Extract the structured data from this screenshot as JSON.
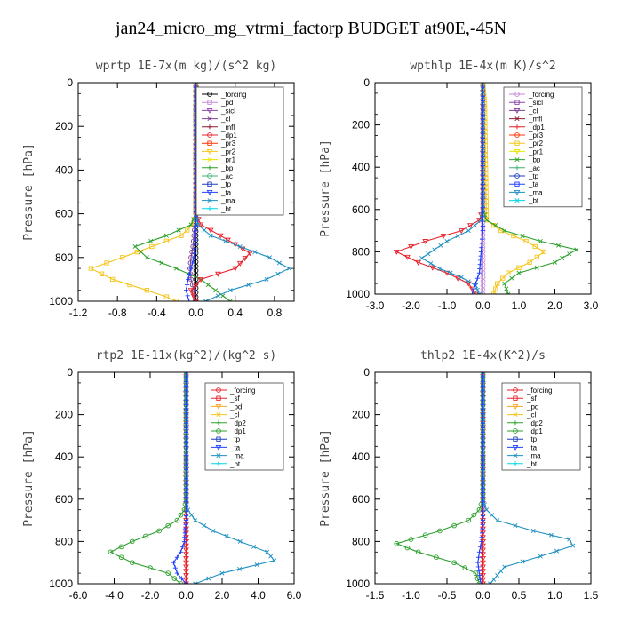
{
  "figure": {
    "title": "jan24_micro_mg_vtrmi_factorp  BUDGET at90E,-45N"
  },
  "colors": {
    "forcing": "#e8222b",
    "sf": "#e8222b",
    "pd": "#f5a623",
    "sicl": "#8e44ad",
    "cl": "#7b3f8f",
    "mfl": "#8b1a2c",
    "dp1": "#e8222b",
    "dp2": "#2ca02c",
    "pr3": "#ff3300",
    "pr2": "#f5c518",
    "pr1": "#e6e600",
    "bp": "#2ca02c",
    "ac": "#3cb371",
    "tp": "#1f3fbf",
    "ta": "#2040ff",
    "ma": "#1e90c0",
    "bt": "#00d5e5",
    "wp_forcing": "#000000",
    "wp_pd": "#c58ad6"
  },
  "chart_data": [
    {
      "type": "line",
      "title": "wprtp   1E-7x(m kg)/(s^2 kg)",
      "ylabel": "Pressure [hPa]",
      "xlim": [
        -1.2,
        1.0
      ],
      "ylim": [
        1000,
        0
      ],
      "xticks": [
        "-1.2",
        "-0.8",
        "-0.4",
        "0.0",
        "0.4",
        "0.8"
      ],
      "xtick_values": [
        -1.2,
        -0.8,
        -0.4,
        0.0,
        0.4,
        0.8
      ],
      "yticks": [
        "0",
        "200",
        "400",
        "600",
        "800",
        "1000"
      ],
      "legend_position": "top-right",
      "legend": [
        "_forcing",
        "_pd",
        "_sicl",
        "_cl",
        "_mfl",
        "_dp1",
        "_pr3",
        "_pr2",
        "_pr1",
        "_bp",
        "_ac",
        "_tp",
        "_ta",
        "_ma",
        "_bt"
      ],
      "legend_colors": [
        "wp_forcing",
        "wp_pd",
        "sicl",
        "cl",
        "mfl",
        "dp1",
        "pr3",
        "pr2",
        "pr1",
        "bp",
        "ac",
        "tp",
        "ta",
        "ma",
        "bt"
      ],
      "series": [
        {
          "name": "_forcing",
          "color": "wp_forcing",
          "marker": "circle",
          "x": [
            0,
            0,
            0,
            0,
            0,
            0,
            0,
            0,
            0,
            0,
            0
          ],
          "y": [
            0,
            100,
            200,
            300,
            400,
            500,
            600,
            700,
            800,
            900,
            1000
          ]
        },
        {
          "name": "_cl",
          "color": "cl",
          "marker": "circle",
          "x": [
            0,
            0,
            0,
            0,
            -0.01,
            -0.02,
            -0.03,
            -0.05,
            -0.06,
            -0.05,
            -0.02,
            -0.01
          ],
          "y": [
            0,
            200,
            400,
            600,
            650,
            700,
            750,
            800,
            850,
            900,
            950,
            1000
          ]
        },
        {
          "name": "_pr2",
          "color": "pr2",
          "marker": "square",
          "x": [
            0,
            0,
            -0.03,
            -0.15,
            -0.45,
            -0.75,
            -1.07,
            -0.85,
            -0.5,
            -0.3,
            -0.2
          ],
          "y": [
            0,
            600,
            650,
            700,
            750,
            800,
            850,
            900,
            950,
            980,
            1000
          ]
        },
        {
          "name": "_bp",
          "color": "bp",
          "marker": "x",
          "x": [
            0,
            0,
            -0.05,
            -0.3,
            -0.62,
            -0.5,
            -0.2,
            0.05,
            0.2,
            0.35
          ],
          "y": [
            0,
            600,
            650,
            700,
            750,
            800,
            850,
            900,
            950,
            1000
          ]
        },
        {
          "name": "_dp1",
          "color": "dp1",
          "marker": "triangle",
          "x": [
            0,
            0,
            0.05,
            0.25,
            0.55,
            0.4,
            0.05,
            -0.05,
            0.0
          ],
          "y": [
            0,
            600,
            650,
            700,
            780,
            850,
            900,
            950,
            1000
          ]
        },
        {
          "name": "_ma",
          "color": "ma",
          "marker": "x",
          "x": [
            0,
            0,
            0.02,
            0.15,
            0.45,
            0.75,
            0.95,
            0.72,
            0.35,
            0.1
          ],
          "y": [
            0,
            600,
            650,
            700,
            750,
            800,
            850,
            900,
            950,
            1000
          ]
        },
        {
          "name": "_ta",
          "color": "ta",
          "marker": "plus",
          "x": [
            0,
            0,
            -0.02,
            -0.05,
            -0.08,
            -0.1,
            -0.07
          ],
          "y": [
            0,
            700,
            800,
            850,
            900,
            950,
            1000
          ]
        }
      ]
    },
    {
      "type": "line",
      "title": "wpthlp   1E-4x(m K)/s^2",
      "ylabel": "Pressure [hPa]",
      "xlim": [
        -3.0,
        3.0
      ],
      "ylim": [
        1000,
        0
      ],
      "xticks": [
        "-3.0",
        "-2.0",
        "-1.0",
        "0.0",
        "1.0",
        "2.0",
        "3.0"
      ],
      "xtick_values": [
        -3,
        -2,
        -1,
        0,
        1,
        2,
        3
      ],
      "yticks": [
        "0",
        "200",
        "400",
        "600",
        "800",
        "1000"
      ],
      "legend_position": "top-right",
      "legend": [
        "_forcing",
        "_sicl",
        "_cl",
        "_mfl",
        "_dp1",
        "_pr3",
        "_pr2",
        "_pr1",
        "_bp",
        "_ac",
        "_tp",
        "_ta",
        "_ma",
        "_bt"
      ],
      "legend_colors": [
        "wp_pd",
        "sicl",
        "cl",
        "mfl",
        "dp1",
        "pr3",
        "pr2",
        "pr1",
        "bp",
        "ac",
        "tp",
        "ta",
        "ma",
        "bt"
      ],
      "series": [
        {
          "name": "_forcing",
          "color": "wp_pd",
          "marker": "circle",
          "x": [
            0,
            0,
            0,
            0,
            0,
            0,
            0,
            0,
            0,
            0,
            0
          ],
          "y": [
            0,
            100,
            200,
            300,
            400,
            500,
            600,
            700,
            800,
            900,
            1000
          ]
        },
        {
          "name": "_dp1",
          "color": "dp1",
          "marker": "triangle",
          "x": [
            0,
            0,
            -0.1,
            -0.6,
            -1.6,
            -2.4,
            -1.8,
            -1.0,
            -0.4,
            -0.2
          ],
          "y": [
            0,
            600,
            650,
            700,
            750,
            800,
            850,
            900,
            950,
            1000
          ]
        },
        {
          "name": "_pr2",
          "color": "pr2",
          "marker": "square",
          "x": [
            0,
            0.05,
            0.1,
            0.5,
            1.2,
            1.7,
            1.3,
            0.7,
            0.4,
            0.3
          ],
          "y": [
            0,
            100,
            650,
            700,
            750,
            800,
            850,
            900,
            950,
            1000
          ]
        },
        {
          "name": "_bp",
          "color": "bp",
          "marker": "x",
          "x": [
            0,
            0,
            0.1,
            0.6,
            1.6,
            2.6,
            2.0,
            1.0,
            0.6,
            0.7
          ],
          "y": [
            0,
            600,
            650,
            700,
            750,
            790,
            850,
            900,
            950,
            1000
          ]
        },
        {
          "name": "_ma",
          "color": "ma",
          "marker": "x",
          "x": [
            0,
            0,
            -0.05,
            -0.4,
            -1.0,
            -1.7,
            -1.2,
            -0.6,
            -0.2,
            -0.1
          ],
          "y": [
            0,
            600,
            650,
            700,
            750,
            830,
            880,
            920,
            960,
            1000
          ]
        },
        {
          "name": "_ta",
          "color": "ta",
          "marker": "plus",
          "x": [
            0,
            0,
            -0.05,
            -0.1,
            -0.2,
            -0.3
          ],
          "y": [
            0,
            700,
            800,
            900,
            950,
            1000
          ]
        }
      ]
    },
    {
      "type": "line",
      "title": "rtp2   1E-11x(kg^2)/(kg^2 s)",
      "ylabel": "Pressure [hPa]",
      "xlim": [
        -6.0,
        6.0
      ],
      "ylim": [
        1000,
        0
      ],
      "xticks": [
        "-6.0",
        "-4.0",
        "-2.0",
        "0.0",
        "2.0",
        "4.0",
        "6.0"
      ],
      "xtick_values": [
        -6,
        -4,
        -2,
        0,
        2,
        4,
        6
      ],
      "yticks": [
        "0",
        "200",
        "400",
        "600",
        "800",
        "1000"
      ],
      "legend_position": "top-right",
      "legend": [
        "_forcing",
        "_sf",
        "_pd",
        "_cl",
        "_dp2",
        "_dp1",
        "_tp",
        "_ta",
        "_ma",
        "_bt"
      ],
      "legend_colors": [
        "forcing",
        "sf",
        "pd",
        "pr2",
        "dp2",
        "bp",
        "tp",
        "ta",
        "ma",
        "bt"
      ],
      "series": [
        {
          "name": "_sf",
          "color": "sf",
          "marker": "triangle",
          "x": [
            0,
            0,
            0,
            0,
            0,
            0,
            0,
            0,
            0,
            0,
            0
          ],
          "y": [
            0,
            100,
            200,
            300,
            400,
            500,
            600,
            700,
            800,
            900,
            1000
          ]
        },
        {
          "name": "_dp2",
          "color": "dp2",
          "marker": "circle",
          "x": [
            0,
            0,
            -0.1,
            -0.5,
            -1.5,
            -3.0,
            -4.2,
            -3.0,
            -1.0,
            -0.3
          ],
          "y": [
            0,
            600,
            650,
            700,
            750,
            800,
            850,
            900,
            950,
            1000
          ]
        },
        {
          "name": "_ma",
          "color": "ma",
          "marker": "x",
          "x": [
            0,
            0,
            0.1,
            0.5,
            1.5,
            3.0,
            4.5,
            4.9,
            2.0,
            0.5
          ],
          "y": [
            0,
            600,
            650,
            700,
            750,
            800,
            850,
            890,
            950,
            1000
          ]
        },
        {
          "name": "_ta",
          "color": "ta",
          "marker": "plus",
          "x": [
            0,
            0,
            -0.1,
            -0.3,
            -0.7,
            -0.5,
            0.0
          ],
          "y": [
            0,
            700,
            800,
            850,
            900,
            950,
            1000
          ]
        }
      ]
    },
    {
      "type": "line",
      "title": "thlp2   1E-4x(K^2)/s",
      "ylabel": "Pressure [hPa]",
      "xlim": [
        -1.5,
        1.5
      ],
      "ylim": [
        1000,
        0
      ],
      "xticks": [
        "-1.5",
        "-1.0",
        "-0.5",
        "0.0",
        "0.5",
        "1.0",
        "1.5"
      ],
      "xtick_values": [
        -1.5,
        -1.0,
        -0.5,
        0.0,
        0.5,
        1.0,
        1.5
      ],
      "yticks": [
        "0",
        "200",
        "400",
        "600",
        "800",
        "1000"
      ],
      "legend_position": "top-right",
      "legend": [
        "_forcing",
        "_sf",
        "_pd",
        "_cl",
        "_dp2",
        "_dp1",
        "_tp",
        "_ta",
        "_ma",
        "_bt"
      ],
      "legend_colors": [
        "forcing",
        "sf",
        "pd",
        "pr2",
        "dp2",
        "bp",
        "tp",
        "ta",
        "ma",
        "bt"
      ],
      "series": [
        {
          "name": "_sf",
          "color": "sf",
          "marker": "triangle",
          "x": [
            0,
            0,
            0,
            0,
            0,
            0,
            0,
            0,
            0,
            0,
            0
          ],
          "y": [
            0,
            100,
            200,
            300,
            400,
            500,
            600,
            700,
            800,
            900,
            1000
          ]
        },
        {
          "name": "_dp2",
          "color": "dp2",
          "marker": "circle",
          "x": [
            0,
            0,
            -0.05,
            -0.2,
            -0.6,
            -1.2,
            -0.9,
            -0.4,
            -0.1,
            -0.05
          ],
          "y": [
            0,
            600,
            650,
            700,
            750,
            810,
            850,
            900,
            950,
            1000
          ]
        },
        {
          "name": "_ma",
          "color": "ma",
          "marker": "x",
          "x": [
            0,
            0,
            0.05,
            0.2,
            0.7,
            1.2,
            1.25,
            0.8,
            0.3,
            0.1
          ],
          "y": [
            0,
            600,
            650,
            700,
            750,
            790,
            820,
            870,
            920,
            1000
          ]
        },
        {
          "name": "_ta",
          "color": "ta",
          "marker": "plus",
          "x": [
            0,
            0,
            -0.02,
            -0.05,
            -0.07,
            -0.03
          ],
          "y": [
            0,
            700,
            800,
            850,
            900,
            1000
          ]
        }
      ]
    }
  ]
}
